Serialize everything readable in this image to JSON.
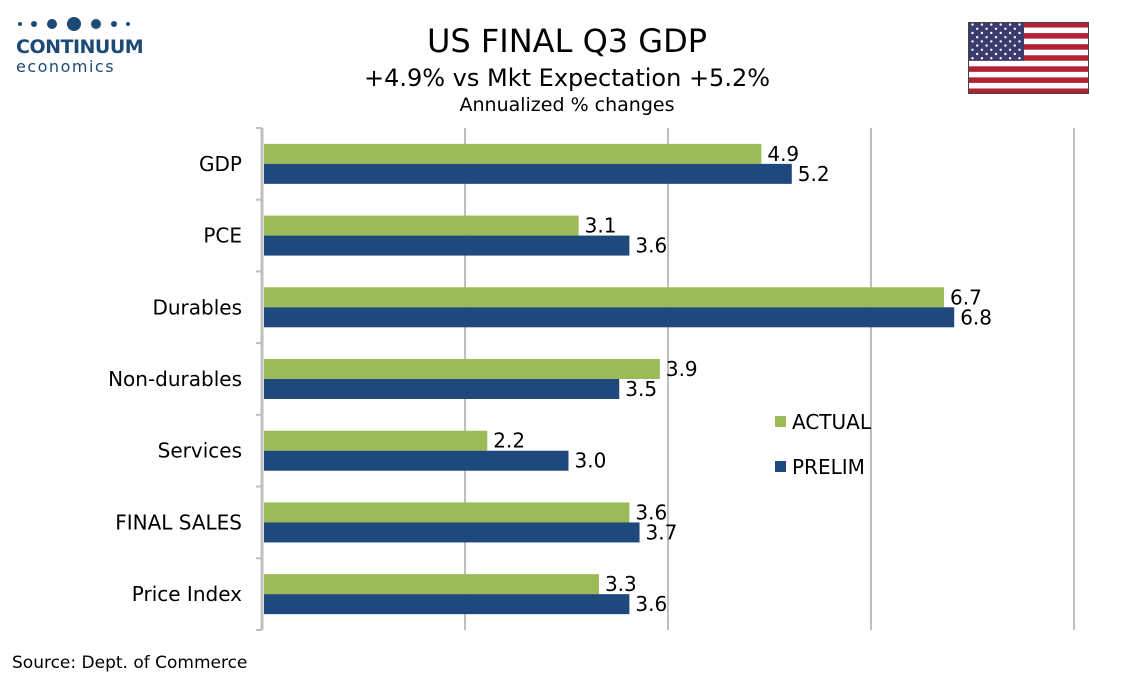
{
  "logo": {
    "line1": "CONTINUUM",
    "line2": "economics"
  },
  "colors": {
    "actual": "#9bbb59",
    "prelim": "#1f497d",
    "grid": "#bfbfbf",
    "brand": "#1d4a74"
  },
  "flag": {
    "icon": "us-flag-icon"
  },
  "source": "Source: Dept. of Commerce",
  "chart_data": {
    "type": "bar",
    "orientation": "horizontal",
    "title": "US FINAL Q3 GDP",
    "subtitle": "+4.9% vs Mkt Expectation +5.2%",
    "subtitle2": "Annualized % changes",
    "categories": [
      "GDP",
      "PCE",
      "Durables",
      "Non-durables",
      "Services",
      "FINAL SALES",
      "Price Index"
    ],
    "series": [
      {
        "name": "ACTUAL",
        "values": [
          4.9,
          3.1,
          6.7,
          3.9,
          2.2,
          3.6,
          3.3
        ]
      },
      {
        "name": "PRELIM",
        "values": [
          5.2,
          3.6,
          6.8,
          3.5,
          3.0,
          3.7,
          3.6
        ]
      }
    ],
    "xlim": [
      0,
      8
    ],
    "grid": true,
    "legend": "right"
  }
}
